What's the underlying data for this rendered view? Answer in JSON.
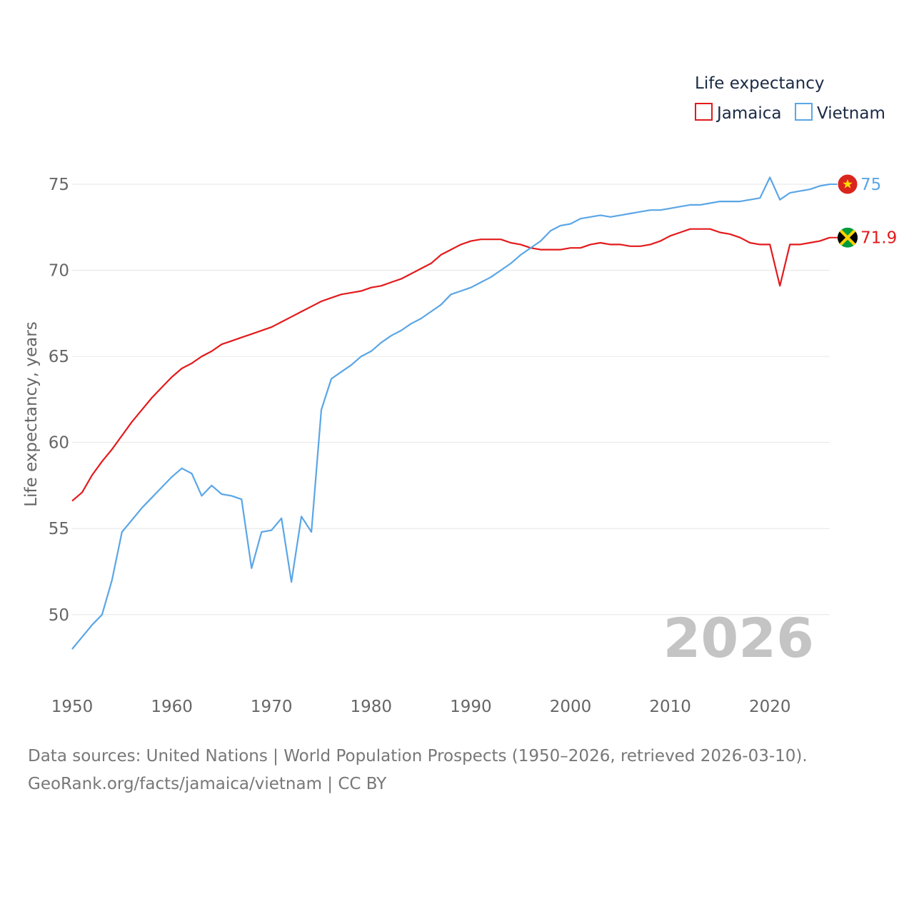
{
  "colors": {
    "jamaica": "#e31a1c",
    "vietnam": "#5aa6e6",
    "grid": "#e6e6e6",
    "watermark": "#c4c4c4"
  },
  "legend": {
    "title": "Life expectancy",
    "items": [
      {
        "label": "Jamaica",
        "color": "#e31a1c"
      },
      {
        "label": "Vietnam",
        "color": "#5aa6e6"
      }
    ]
  },
  "year_watermark": "2026",
  "end_labels": {
    "vietnam": "75",
    "jamaica": "71.9"
  },
  "flags": {
    "vietnam": "vietnam-flag-icon",
    "jamaica": "jamaica-flag-icon"
  },
  "footer": {
    "sources": "Data sources: United Nations | World Population Prospects (1950–2026, retrieved 2026-03-10).",
    "credit": "GeoRank.org/facts/jamaica/vietnam | CC BY"
  },
  "chart_data": {
    "type": "line",
    "title": "Life expectancy",
    "xlabel": "",
    "ylabel": "Life expectancy, years",
    "xlim": [
      1950,
      2026
    ],
    "ylim": [
      48,
      75
    ],
    "x_ticks": [
      1950,
      1960,
      1970,
      1980,
      1990,
      2000,
      2010,
      2020
    ],
    "y_ticks": [
      50,
      55,
      60,
      65,
      70,
      75
    ],
    "grid": true,
    "legend_position": "top-right",
    "x": [
      1950,
      1951,
      1952,
      1953,
      1954,
      1955,
      1956,
      1957,
      1958,
      1959,
      1960,
      1961,
      1962,
      1963,
      1964,
      1965,
      1966,
      1967,
      1968,
      1969,
      1970,
      1971,
      1972,
      1973,
      1974,
      1975,
      1976,
      1977,
      1978,
      1979,
      1980,
      1981,
      1982,
      1983,
      1984,
      1985,
      1986,
      1987,
      1988,
      1989,
      1990,
      1991,
      1992,
      1993,
      1994,
      1995,
      1996,
      1997,
      1998,
      1999,
      2000,
      2001,
      2002,
      2003,
      2004,
      2005,
      2006,
      2007,
      2008,
      2009,
      2010,
      2011,
      2012,
      2013,
      2014,
      2015,
      2016,
      2017,
      2018,
      2019,
      2020,
      2021,
      2022,
      2023,
      2024,
      2025,
      2026
    ],
    "series": [
      {
        "name": "Jamaica",
        "color": "#e31a1c",
        "values": [
          56.6,
          57.1,
          58.1,
          58.9,
          59.6,
          60.4,
          61.2,
          61.9,
          62.6,
          63.2,
          63.8,
          64.3,
          64.6,
          65.0,
          65.3,
          65.7,
          65.9,
          66.1,
          66.3,
          66.5,
          66.7,
          67.0,
          67.3,
          67.6,
          67.9,
          68.2,
          68.4,
          68.6,
          68.7,
          68.8,
          69.0,
          69.1,
          69.3,
          69.5,
          69.8,
          70.1,
          70.4,
          70.9,
          71.2,
          71.5,
          71.7,
          71.8,
          71.8,
          71.8,
          71.6,
          71.5,
          71.3,
          71.2,
          71.2,
          71.2,
          71.3,
          71.3,
          71.5,
          71.6,
          71.5,
          71.5,
          71.4,
          71.4,
          71.5,
          71.7,
          72.0,
          72.2,
          72.4,
          72.4,
          72.4,
          72.2,
          72.1,
          71.9,
          71.6,
          71.5,
          71.5,
          69.1,
          71.5,
          71.5,
          71.6,
          71.7,
          71.9
        ]
      },
      {
        "name": "Vietnam",
        "color": "#5aa6e6",
        "values": [
          48.0,
          48.7,
          49.4,
          50.0,
          52.0,
          54.8,
          55.5,
          56.2,
          56.8,
          57.4,
          58.0,
          58.5,
          58.2,
          56.9,
          57.5,
          57.0,
          56.9,
          56.7,
          52.7,
          54.8,
          54.9,
          55.6,
          51.9,
          55.7,
          54.8,
          61.9,
          63.7,
          64.1,
          64.5,
          65.0,
          65.3,
          65.8,
          66.2,
          66.5,
          66.9,
          67.2,
          67.6,
          68.0,
          68.6,
          68.8,
          69.0,
          69.3,
          69.6,
          70.0,
          70.4,
          70.9,
          71.3,
          71.7,
          72.3,
          72.6,
          72.7,
          73.0,
          73.1,
          73.2,
          73.1,
          73.2,
          73.3,
          73.4,
          73.5,
          73.5,
          73.6,
          73.7,
          73.8,
          73.8,
          73.9,
          74.0,
          74.0,
          74.0,
          74.1,
          74.2,
          75.4,
          74.1,
          74.5,
          74.6,
          74.7,
          74.9,
          75.0
        ]
      }
    ]
  }
}
